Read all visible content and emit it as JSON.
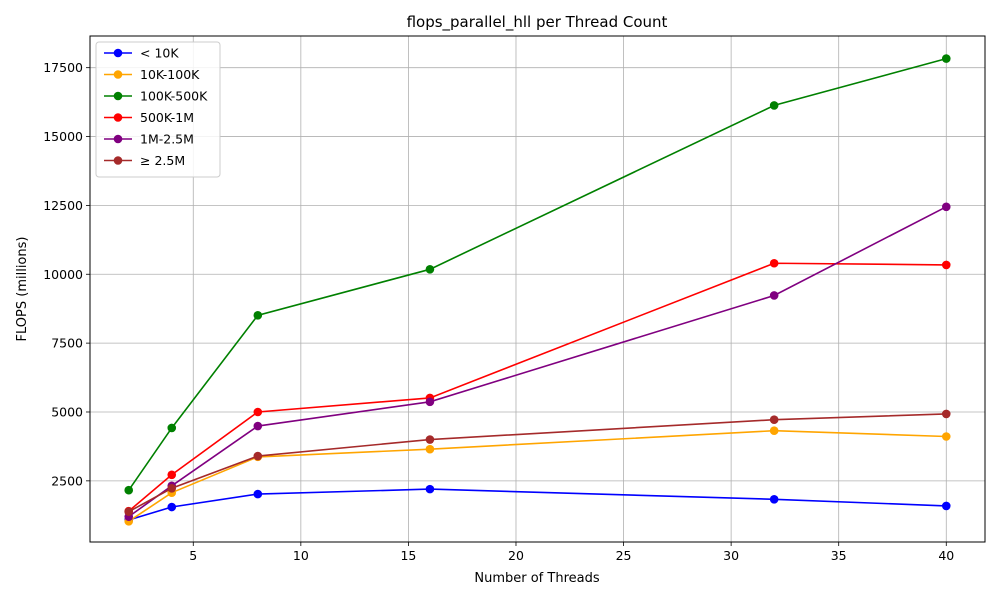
{
  "chart_data": {
    "type": "line",
    "title": "flops_parallel_hll per Thread Count",
    "xlabel": "Number of Threads",
    "ylabel": "FLOPS (millions)",
    "x": [
      2,
      4,
      8,
      16,
      32,
      40
    ],
    "xlim": [
      0.2,
      41.8
    ],
    "ylim": [
      280,
      18650
    ],
    "xticks": [
      5,
      10,
      15,
      20,
      25,
      30,
      35,
      40
    ],
    "yticks": [
      2500,
      5000,
      7500,
      10000,
      12500,
      15000,
      17500
    ],
    "grid": true,
    "legend_position": "top-left",
    "series": [
      {
        "name": "< 10K",
        "color": "#0000ff",
        "values": [
          1080,
          1550,
          2020,
          2200,
          1830,
          1590
        ]
      },
      {
        "name": "10K-100K",
        "color": "#ffa500",
        "values": [
          1030,
          2070,
          3370,
          3650,
          4320,
          4110
        ]
      },
      {
        "name": "100K-500K",
        "color": "#008000",
        "values": [
          2160,
          4420,
          8510,
          10180,
          16130,
          17830
        ]
      },
      {
        "name": "500K-1M",
        "color": "#ff0000",
        "values": [
          1400,
          2720,
          5000,
          5510,
          10400,
          10340
        ]
      },
      {
        "name": "1M-2.5M",
        "color": "#800080",
        "values": [
          1200,
          2320,
          4490,
          5370,
          9230,
          12450
        ]
      },
      {
        "name": "≥ 2.5M",
        "color": "#a52a2a",
        "values": [
          1380,
          2230,
          3400,
          4000,
          4720,
          4930
        ]
      }
    ]
  }
}
